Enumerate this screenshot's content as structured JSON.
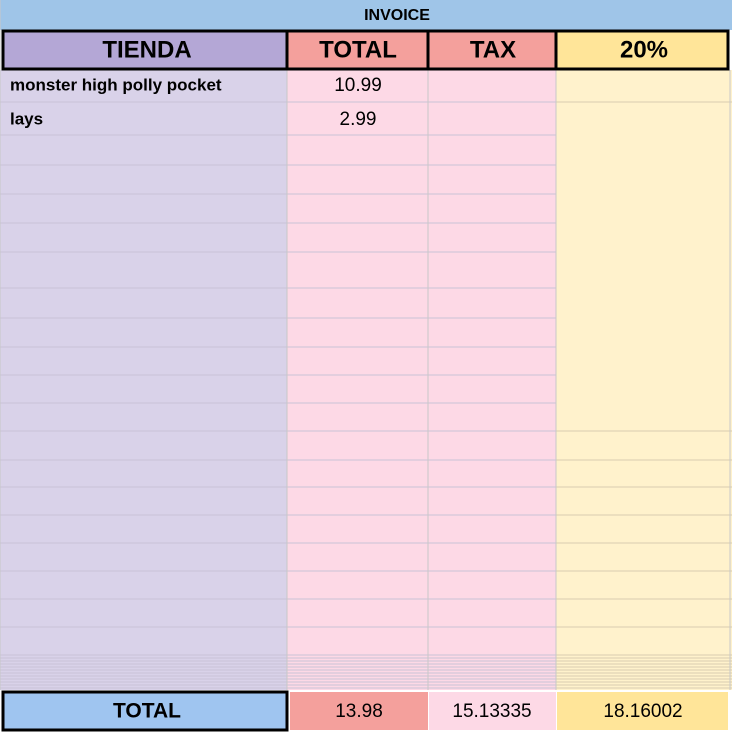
{
  "header": {
    "title": "INVOICE"
  },
  "table": {
    "columns": [
      "TIENDA",
      "TOTAL",
      "TAX",
      "20%"
    ],
    "rows": [
      [
        "monster high polly pocket",
        10.99
      ],
      [
        "lays",
        2.99
      ]
    ],
    "totals": {
      "label": "TOTAL",
      "values": [
        13.98,
        15.13335,
        18.16002
      ]
    }
  }
}
